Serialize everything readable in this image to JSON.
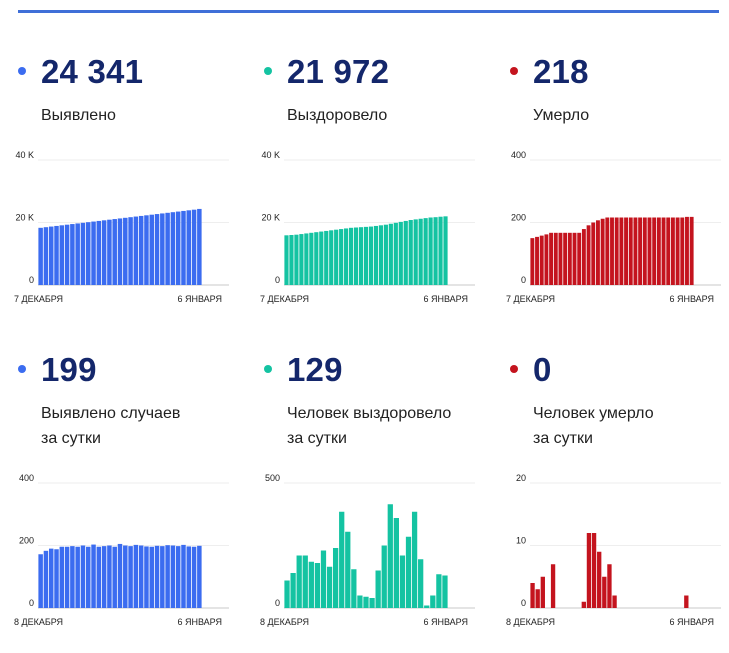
{
  "cards": [
    {
      "value": "24 341",
      "label": "Выявлено",
      "color": "#3b6cf0",
      "chart_data": {
        "type": "bar",
        "y_ticks": [
          "0",
          "20 K",
          "40 K"
        ],
        "ylim": [
          0,
          40000
        ],
        "x_start_label": "7 ДЕКАБРЯ",
        "x_end_label": "6 ЯНВАРЯ",
        "values": [
          18300,
          18500,
          18700,
          18900,
          19100,
          19300,
          19500,
          19700,
          19900,
          20100,
          20300,
          20500,
          20700,
          20900,
          21100,
          21300,
          21500,
          21700,
          21900,
          22100,
          22300,
          22500,
          22700,
          22900,
          23100,
          23300,
          23500,
          23700,
          23900,
          24100,
          24341
        ]
      }
    },
    {
      "value": "21 972",
      "label": "Выздоровело",
      "color": "#14c3a2",
      "chart_data": {
        "type": "bar",
        "y_ticks": [
          "0",
          "20 K",
          "40 K"
        ],
        "ylim": [
          0,
          40000
        ],
        "x_start_label": "7 ДЕКАБРЯ",
        "x_end_label": "6 ЯНВАРЯ",
        "values": [
          15900,
          16000,
          16100,
          16300,
          16500,
          16700,
          16900,
          17100,
          17300,
          17500,
          17700,
          17900,
          18100,
          18300,
          18400,
          18500,
          18600,
          18700,
          18900,
          19100,
          19300,
          19600,
          19900,
          20200,
          20500,
          20800,
          21000,
          21200,
          21400,
          21600,
          21700,
          21850,
          21972
        ]
      }
    },
    {
      "value": "218",
      "label": "Умерло",
      "color": "#c4141e",
      "chart_data": {
        "type": "bar",
        "y_ticks": [
          "0",
          "200",
          "400"
        ],
        "ylim": [
          0,
          400
        ],
        "x_start_label": "7 ДЕКАБРЯ",
        "x_end_label": "6 ЯНВАРЯ",
        "values": [
          150,
          154,
          158,
          162,
          167,
          167,
          167,
          167,
          167,
          167,
          167,
          179,
          191,
          200,
          207,
          212,
          216,
          216,
          216,
          216,
          216,
          216,
          216,
          216,
          216,
          216,
          216,
          216,
          216,
          216,
          216,
          216,
          216,
          218,
          218
        ]
      }
    },
    {
      "value": "199",
      "label": "Выявлено случаев\nза сутки",
      "color": "#3b6cf0",
      "chart_data": {
        "type": "bar",
        "y_ticks": [
          "0",
          "200",
          "400"
        ],
        "ylim": [
          0,
          400
        ],
        "x_start_label": "8 ДЕКАБРЯ",
        "x_end_label": "6 ЯНВАРЯ",
        "values": [
          172,
          183,
          190,
          188,
          196,
          196,
          198,
          196,
          200,
          196,
          203,
          196,
          198,
          200,
          196,
          205,
          200,
          198,
          202,
          200,
          197,
          196,
          199,
          198,
          201,
          200,
          198,
          202,
          197,
          196,
          199
        ]
      }
    },
    {
      "value": "129",
      "label": "Человек выздоровело\nза сутки",
      "color": "#14c3a2",
      "chart_data": {
        "type": "bar",
        "y_ticks": [
          "0",
          "500"
        ],
        "ylim": [
          0,
          500
        ],
        "x_start_label": "8 ДЕКАБРЯ",
        "x_end_label": "6 ЯНВАРЯ",
        "values": [
          110,
          140,
          210,
          210,
          185,
          180,
          230,
          165,
          240,
          385,
          305,
          155,
          50,
          45,
          40,
          150,
          250,
          415,
          360,
          210,
          285,
          385,
          195,
          10,
          50,
          135,
          130
        ]
      }
    },
    {
      "value": "0",
      "label": "Человек умерло\nза сутки",
      "color": "#c4141e",
      "chart_data": {
        "type": "bar",
        "y_ticks": [
          "0",
          "10",
          "20"
        ],
        "ylim": [
          0,
          20
        ],
        "x_start_label": "8 ДЕКАБРЯ",
        "x_end_label": "6 ЯНВАРЯ",
        "values": [
          4,
          3,
          5,
          0,
          7,
          0,
          0,
          0,
          0,
          0,
          1,
          12,
          12,
          9,
          5,
          7,
          2,
          0,
          0,
          0,
          0,
          0,
          0,
          0,
          0,
          0,
          0,
          0,
          0,
          0,
          2,
          0
        ]
      }
    }
  ]
}
